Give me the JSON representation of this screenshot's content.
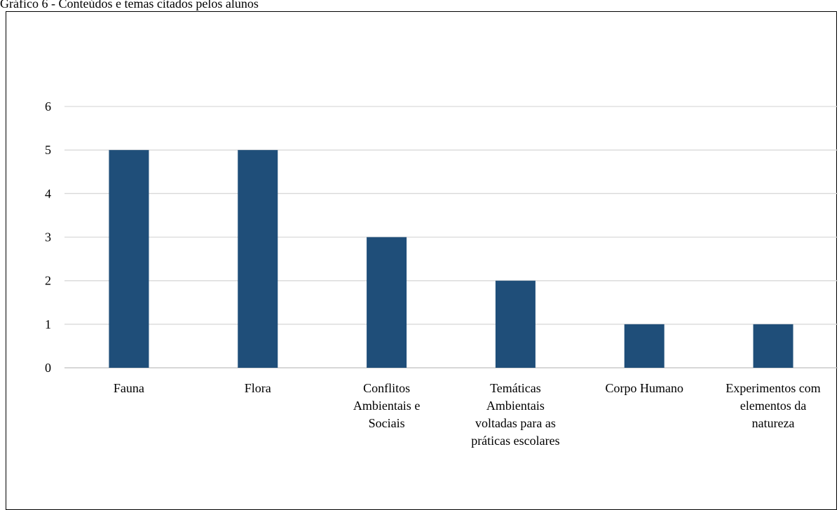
{
  "caption": "Gráfico 6 - Conteúdos e temas citados pelos alunos",
  "colors": {
    "bar": "#1f4e79",
    "grid": "#d9d9d9",
    "axis": "#bfbfbf"
  },
  "chart_data": {
    "type": "bar",
    "title": "",
    "xlabel": "",
    "ylabel": "",
    "grid": true,
    "legend": "none",
    "ylim": [
      0,
      6
    ],
    "yticks": [
      0,
      1,
      2,
      3,
      4,
      5,
      6
    ],
    "categories": [
      [
        "Fauna"
      ],
      [
        "Flora"
      ],
      [
        "Conflitos",
        "Ambientais e",
        "Sociais"
      ],
      [
        "Temáticas",
        "Ambientais",
        "voltadas para as",
        "práticas escolares"
      ],
      [
        "Corpo Humano"
      ],
      [
        "Experimentos com",
        "elementos da",
        "natureza"
      ]
    ],
    "values": [
      5,
      5,
      3,
      2,
      1,
      1
    ]
  }
}
